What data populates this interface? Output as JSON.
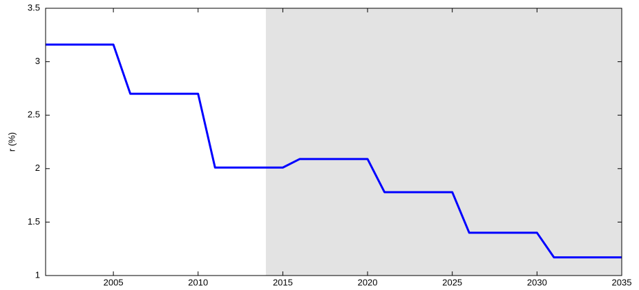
{
  "chart_data": {
    "type": "line",
    "ylabel": "r (%)",
    "x": [
      2001,
      2005,
      2006,
      2010,
      2011,
      2015,
      2016,
      2020,
      2021,
      2025,
      2026,
      2030,
      2031,
      2035
    ],
    "values": [
      3.16,
      3.16,
      2.7,
      2.7,
      2.01,
      2.01,
      2.09,
      2.09,
      1.78,
      1.78,
      1.4,
      1.4,
      1.17,
      1.17
    ],
    "color": "#0000ff",
    "shaded_region": [
      2014,
      2035
    ],
    "shade_color": "#e3e3e3",
    "xlim": [
      2001,
      2035
    ],
    "xticks": [
      2005,
      2010,
      2015,
      2020,
      2025,
      2030,
      2035
    ],
    "ylim": [
      1,
      3.5
    ],
    "yticks": [
      1,
      1.5,
      2,
      2.5,
      3,
      3.5
    ]
  }
}
